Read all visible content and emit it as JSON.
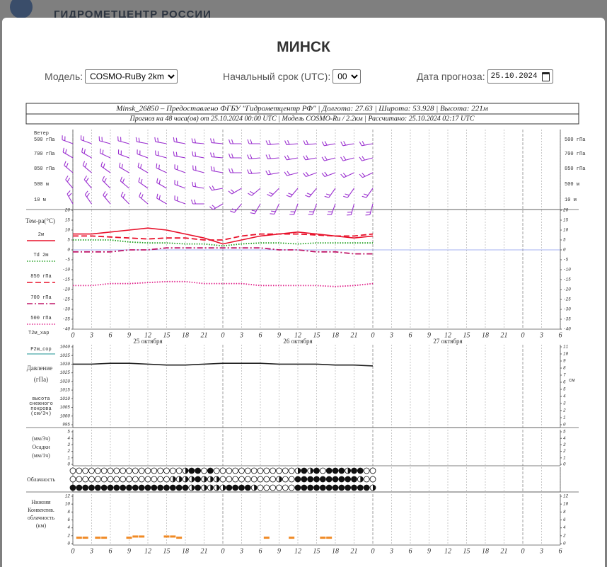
{
  "site_header": "ГИДРОМЕТЦЕНТР РОССИИ",
  "modal": {
    "title": "МИНСК",
    "controls": [
      {
        "label": "Модель:",
        "value": "COSMO-RuBy 2km"
      },
      {
        "label": "Начальный срок (UTC):",
        "value": "00"
      },
      {
        "label": "Дата прогноза:",
        "value": "25.10.2024"
      }
    ]
  },
  "meteogram": {
    "header": [
      "Minsk_26850 – Предоставлено ФГБУ \"Гидрометцентр РФ\" | Долгота: 27.63 | Широта: 53.928 | Высота: 221м",
      "Прогноз на 48 часа(ов) от 25.10.2024 00:00 UTC | Модель COSMO-Ru / 2.2км | Рассчитано: 25.10.2024 02:17 UTC"
    ],
    "xlim": [
      0,
      78
    ],
    "xticks": [
      0,
      3,
      6,
      9,
      12,
      15,
      18,
      21,
      {
        "value": 24,
        "label": "0"
      },
      {
        "value": 27,
        "label": "3"
      },
      {
        "value": 30,
        "label": "6"
      },
      {
        "value": 33,
        "label": "9"
      },
      {
        "value": 36,
        "label": "12"
      },
      {
        "value": 39,
        "label": "15"
      },
      {
        "value": 42,
        "label": "18"
      },
      {
        "value": 45,
        "label": "21"
      },
      {
        "value": 48,
        "label": "0"
      },
      {
        "value": 51,
        "label": "3"
      },
      {
        "value": 54,
        "label": "6"
      },
      {
        "value": 57,
        "label": "9"
      },
      {
        "value": 60,
        "label": "12"
      },
      {
        "value": 63,
        "label": "15"
      },
      {
        "value": 66,
        "label": "18"
      },
      {
        "value": 69,
        "label": "21"
      },
      {
        "value": 72,
        "label": "0"
      },
      {
        "value": 75,
        "label": "3"
      },
      {
        "value": 78,
        "label": "6"
      }
    ],
    "dates": [
      "25 октября",
      "26 октября",
      "27 октября"
    ],
    "wind": {
      "title": "Ветер",
      "color": "#9b30d0",
      "x": [
        0,
        3,
        6,
        9,
        12,
        15,
        18,
        21,
        24,
        27,
        30,
        33,
        36,
        39,
        42,
        45,
        48
      ],
      "levels": [
        {
          "name": "500 гПа",
          "dir": [
            290,
            290,
            285,
            285,
            280,
            280,
            280,
            275,
            275,
            270,
            270,
            265,
            265,
            265,
            260,
            260,
            260
          ]
        },
        {
          "name": "700 гПа",
          "dir": [
            300,
            300,
            295,
            290,
            290,
            285,
            280,
            280,
            275,
            270,
            265,
            265,
            260,
            260,
            255,
            255,
            255
          ]
        },
        {
          "name": "850 гПа",
          "dir": [
            310,
            310,
            305,
            300,
            300,
            295,
            290,
            285,
            280,
            270,
            265,
            260,
            255,
            250,
            250,
            245,
            245
          ]
        },
        {
          "name": "500 м",
          "dir": [
            320,
            320,
            315,
            310,
            305,
            300,
            290,
            280,
            260,
            240,
            230,
            225,
            220,
            220,
            215,
            215,
            215
          ]
        },
        {
          "name": "10 м",
          "dir": [
            330,
            325,
            320,
            315,
            310,
            300,
            290,
            270,
            240,
            220,
            210,
            205,
            200,
            200,
            200,
            195,
            195
          ]
        }
      ]
    },
    "temperature": {
      "title": "Тем-ра(°С)",
      "ylim": [
        -40,
        20
      ],
      "yticks": [
        20,
        15,
        10,
        5,
        0,
        -5,
        -10,
        -15,
        -20,
        -25,
        -30,
        -35,
        -40
      ],
      "x": [
        0,
        3,
        6,
        9,
        12,
        15,
        18,
        21,
        24,
        27,
        30,
        33,
        36,
        39,
        42,
        45,
        48
      ],
      "series": [
        {
          "name": "2м",
          "color": "#e8102a",
          "dash": "solid",
          "values": [
            8,
            8,
            9,
            10,
            11,
            10,
            8,
            6,
            3,
            5,
            7,
            8,
            9,
            8,
            7,
            6,
            7
          ]
        },
        {
          "name": "Td 2м",
          "color": "#1a9e1a",
          "dash": "dot",
          "values": [
            5,
            5,
            5,
            4,
            3.5,
            3.5,
            3,
            3,
            2,
            3,
            3.5,
            3.5,
            3,
            3.5,
            3.5,
            3.5,
            3.5
          ]
        },
        {
          "name": "850 гПа",
          "color": "#e8102a",
          "dash": "dash",
          "values": [
            7,
            7,
            6.5,
            6,
            5.5,
            6,
            6,
            5,
            5,
            7,
            8,
            8,
            8,
            7.5,
            7,
            7,
            8
          ]
        },
        {
          "name": "700 гПа",
          "color": "#c0186a",
          "dash": "dashdot",
          "values": [
            -1,
            -1,
            -1,
            0,
            0,
            1,
            1,
            1,
            1,
            1,
            1,
            0,
            0,
            -1,
            -1,
            -2,
            -2
          ]
        },
        {
          "name": "500 гПа",
          "color": "#e0208a",
          "dash": "dot",
          "values": [
            -18,
            -18,
            -17,
            -17,
            -16.5,
            -16,
            -16,
            -17,
            -17,
            -17,
            -18,
            -18,
            -18,
            -18,
            -18.5,
            -18,
            -17
          ]
        }
      ],
      "footnote": "Т2м_хар"
    },
    "pressure": {
      "name": "P2м_сор",
      "title": "Давление",
      "unit": "(гПа)",
      "snow_title": [
        "высота",
        "снежного",
        "покрова",
        "(см/3ч)"
      ],
      "ylim": [
        995,
        1040
      ],
      "yticks": [
        1040,
        1035,
        1030,
        1025,
        1020,
        1015,
        1010,
        1005,
        1000,
        995
      ],
      "y2lim": [
        0,
        11
      ],
      "y2ticks": [
        11,
        10,
        9,
        8,
        7,
        6,
        5,
        4,
        3,
        2,
        1,
        0
      ],
      "y2_unit": "см",
      "color": "#222222",
      "x": [
        0,
        3,
        6,
        9,
        12,
        15,
        18,
        21,
        24,
        27,
        30,
        33,
        36,
        39,
        42,
        45,
        48
      ],
      "values": [
        1030,
        1030,
        1030.5,
        1030.5,
        1030,
        1029.5,
        1029.5,
        1030,
        1030.5,
        1030.5,
        1030.5,
        1030,
        1030,
        1030,
        1029.5,
        1029.5,
        1029
      ]
    },
    "precip": {
      "labels": [
        "(мм/3ч)",
        "Осадки",
        "(мм/1ч)"
      ],
      "ylim": [
        0,
        5
      ],
      "yticks": [
        5,
        4,
        3,
        2,
        1,
        0
      ]
    },
    "clouds": {
      "title": "Облачность",
      "rows": [
        [
          0,
          0,
          0,
          0,
          0,
          0,
          0,
          0,
          0,
          0,
          0,
          0,
          0,
          0,
          0,
          0,
          0,
          0,
          0.5,
          1,
          1,
          0,
          1,
          0,
          0,
          0,
          0,
          0,
          0,
          0,
          0,
          0,
          0,
          0,
          0,
          0,
          0.5,
          1,
          0.5,
          1,
          0,
          1,
          1,
          1,
          0.5,
          1,
          1,
          0,
          0
        ],
        [
          0,
          0,
          0,
          0,
          0,
          0,
          0,
          0,
          0,
          0,
          0,
          0,
          0,
          0,
          0,
          0,
          0.5,
          0.5,
          0.5,
          0.5,
          1,
          0.5,
          0.5,
          0.5,
          0,
          0,
          0,
          0,
          0,
          0,
          0,
          0,
          0,
          0.5,
          0,
          0,
          1,
          1,
          1,
          1,
          1,
          1,
          1,
          1,
          1,
          1,
          0.5,
          0,
          0
        ],
        [
          1,
          1,
          1,
          1,
          1,
          1,
          1,
          1,
          1,
          1,
          1,
          1,
          1,
          1,
          1,
          1,
          1,
          1,
          1,
          0.5,
          1,
          0.5,
          0.5,
          0.5,
          0.5,
          1,
          1,
          1,
          1,
          0.5,
          0,
          0,
          0,
          0,
          0,
          0,
          1,
          1,
          1,
          1,
          1,
          1,
          1,
          1,
          1,
          1,
          1,
          1,
          0.5
        ]
      ]
    },
    "convective": {
      "labels": [
        "Нижняя",
        "Конвектив.",
        "облачность",
        "(км)"
      ],
      "color": "#f08a24",
      "ylim": [
        0,
        12
      ],
      "yticks": [
        12,
        10,
        8,
        6,
        4,
        2,
        0
      ],
      "x": [
        1,
        2,
        4,
        5,
        9,
        10,
        11,
        15,
        16,
        17,
        31,
        35,
        40,
        41
      ],
      "values": [
        1.5,
        1.5,
        1.5,
        1.5,
        1.5,
        1.8,
        1.8,
        1.8,
        1.8,
        1.5,
        1.5,
        1.5,
        1.5,
        1.5
      ]
    }
  }
}
